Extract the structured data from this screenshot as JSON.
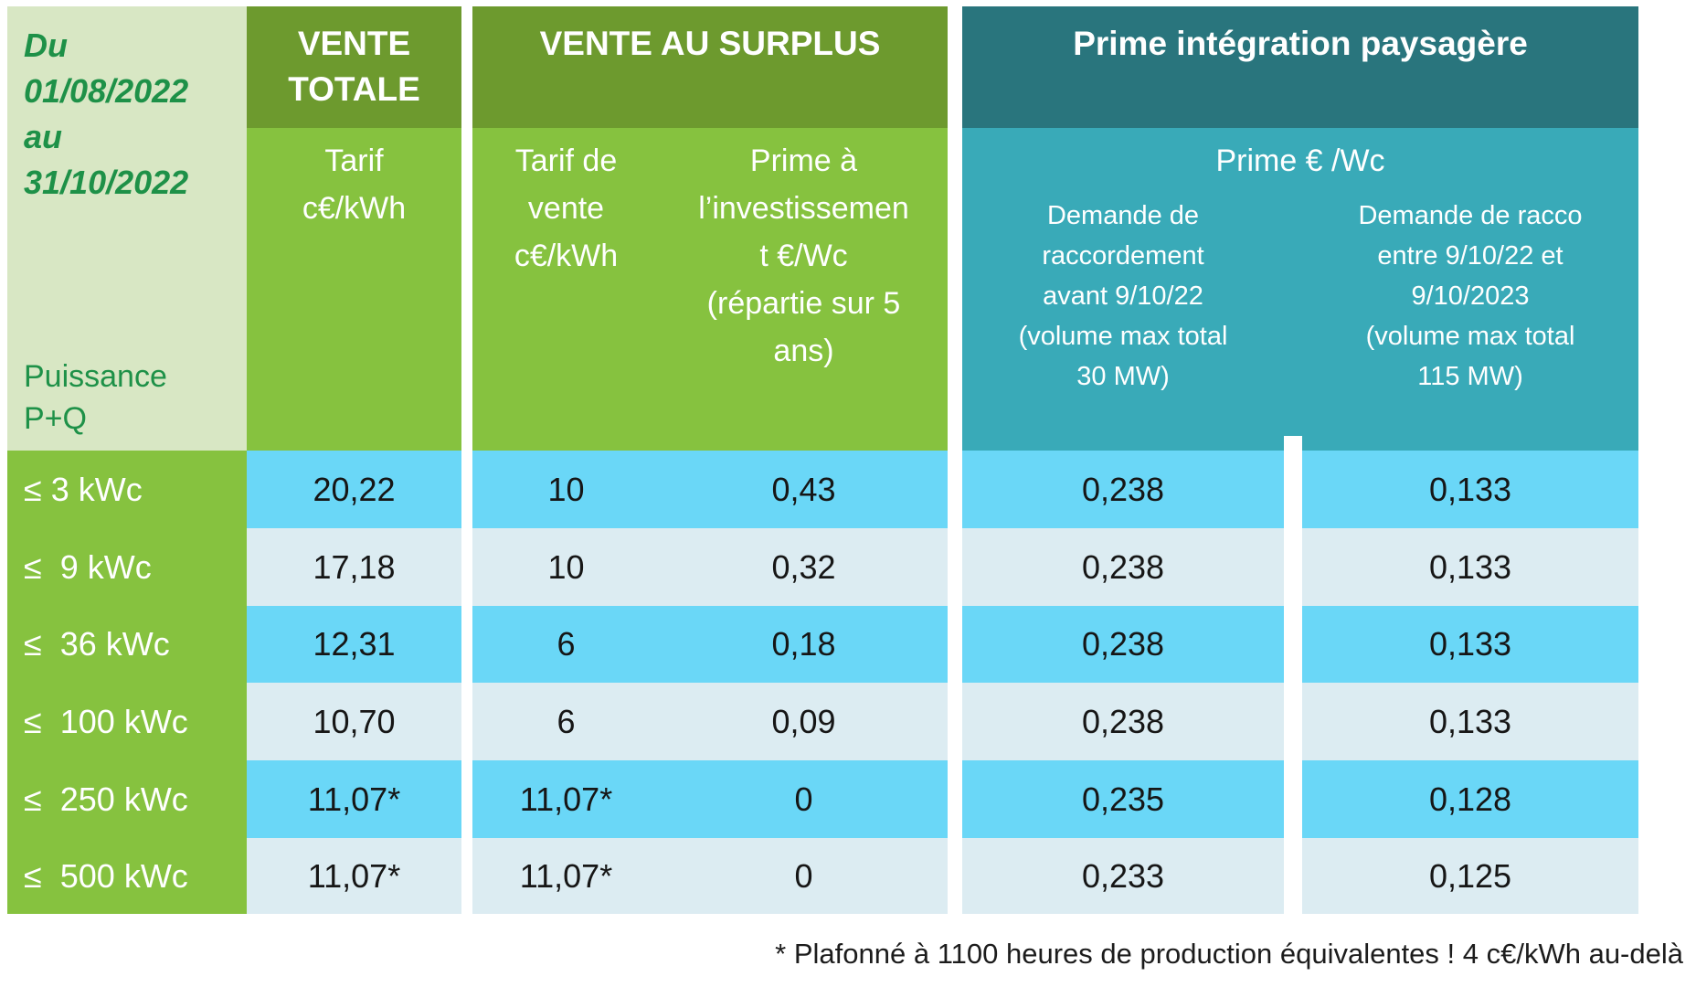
{
  "table": {
    "period": "Du\n01/08/2022\nau\n31/10/2022",
    "power_label": "Puissance\nP+Q",
    "groups": {
      "vente_totale": "VENTE\nTOTALE",
      "vente_surplus": "VENTE AU SURPLUS",
      "prime_integration": "Prime intégration paysagère"
    },
    "subheaders": {
      "tarif": "Tarif\nc€/kWh",
      "tarif_vente": "Tarif de\nvente\nc€/kWh",
      "prime_invest": "Prime à\nl’investissemen\nt €/Wc\n(répartie sur 5\nans)",
      "prime_wc": "Prime € /Wc",
      "demande_avant": "Demande de\nraccordement\navant 9/10/22\n(volume max total\n30 MW)",
      "demande_entre": "Demande de racco\nentre 9/10/22 et\n9/10/2023\n(volume max total\n115 MW)"
    },
    "rows": [
      {
        "label": "≤ 3 kWc",
        "values": [
          "20,22",
          "10",
          "0,43",
          "0,238",
          "0,133"
        ]
      },
      {
        "label": "≤  9 kWc",
        "values": [
          "17,18",
          "10",
          "0,32",
          "0,238",
          "0,133"
        ]
      },
      {
        "label": "≤  36 kWc",
        "values": [
          "12,31",
          "6",
          "0,18",
          "0,238",
          "0,133"
        ]
      },
      {
        "label": "≤  100 kWc",
        "values": [
          "10,70",
          "6",
          "0,09",
          "0,238",
          "0,133"
        ]
      },
      {
        "label": "≤  250 kWc",
        "values": [
          "11,07*",
          "11,07*",
          "0",
          "0,235",
          "0,128"
        ]
      },
      {
        "label": "≤  500 kWc",
        "values": [
          "11,07*",
          "11,07*",
          "0",
          "0,233",
          "0,125"
        ]
      }
    ],
    "footnote": "* Plafonné à 1100 heures de production équivalentes ! 4 c€/kWh au-delà"
  },
  "colors": {
    "light_green_header": "#d8e7c4",
    "green_text": "#1e9148",
    "dark_olive_header": "#6d9a2e",
    "medium_green": "#86c23f",
    "dark_teal_header": "#29757d",
    "light_teal": "#39aab8",
    "row_bright_blue": "#6ad7f7",
    "row_light_blue": "#dcecf2",
    "value_text": "#161616"
  }
}
